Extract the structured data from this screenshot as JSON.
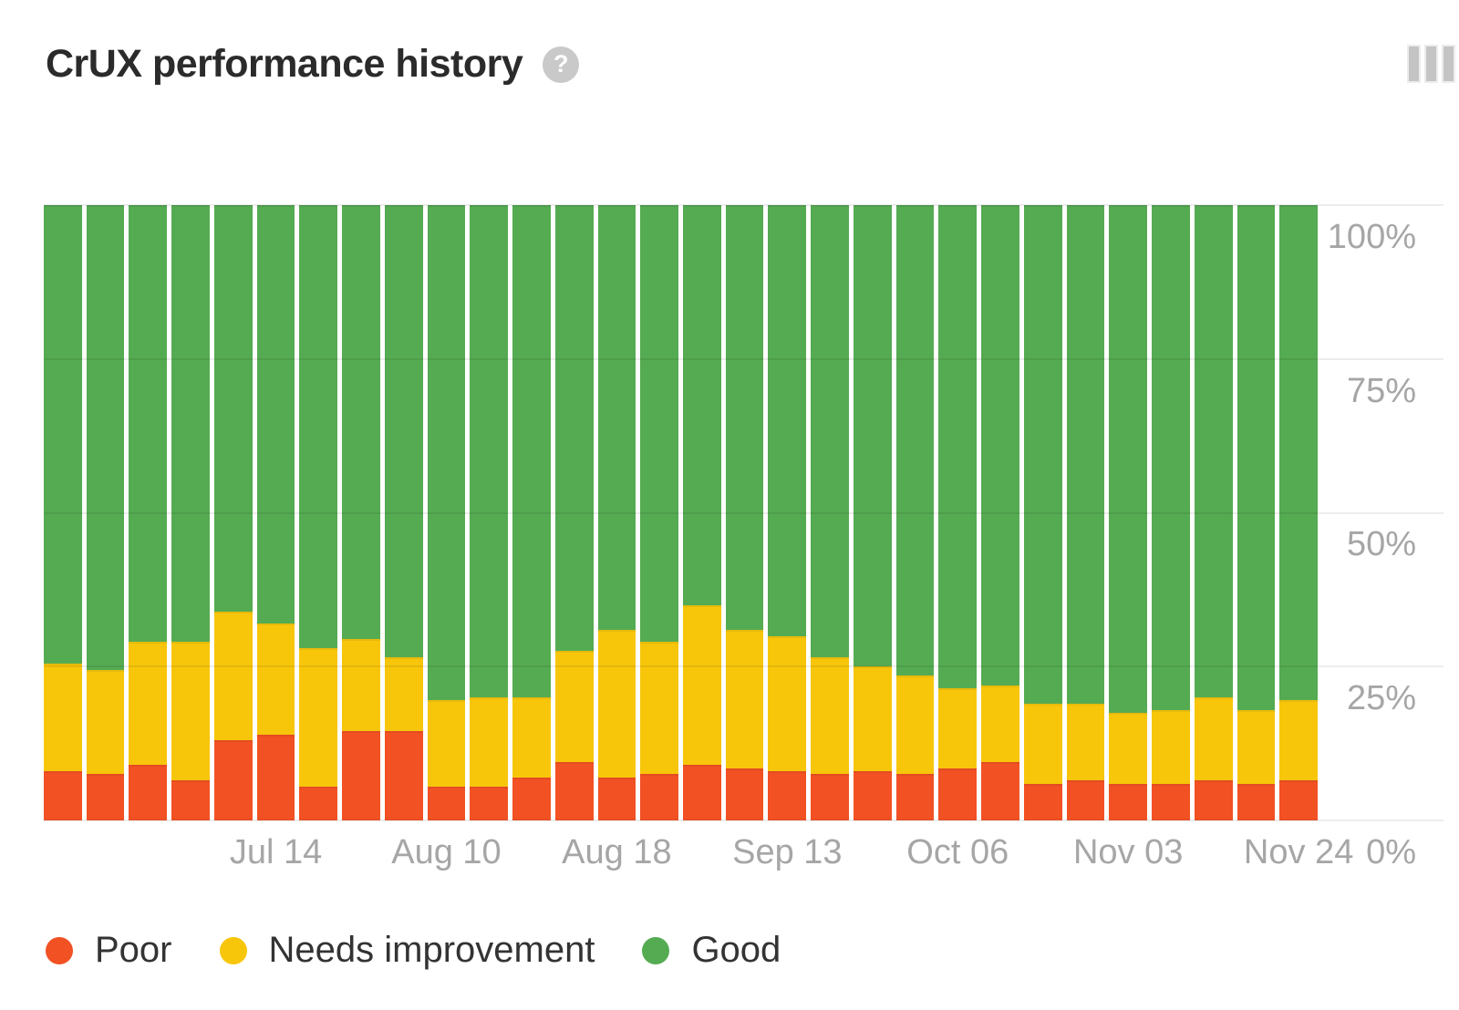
{
  "header": {
    "title": "CrUX performance history",
    "help_icon": "?",
    "icons": {
      "help": "question-mark-circle",
      "top_right": "column-chart-toggle"
    }
  },
  "axes": {
    "y_ticks": [
      "100%",
      "75%",
      "50%",
      "25%",
      "0%"
    ],
    "x_ticks": [
      {
        "label": "Jul 14",
        "bar_index": 5
      },
      {
        "label": "Aug 10",
        "bar_index": 9
      },
      {
        "label": "Aug 18",
        "bar_index": 13
      },
      {
        "label": "Sep 13",
        "bar_index": 17
      },
      {
        "label": "Oct 06",
        "bar_index": 21
      },
      {
        "label": "Nov 03",
        "bar_index": 25
      },
      {
        "label": "Nov 24",
        "bar_index": 29
      }
    ]
  },
  "legend": {
    "items": [
      {
        "label": "Poor",
        "color": "#f25124"
      },
      {
        "label": "Needs improvement",
        "color": "#f7c60b"
      },
      {
        "label": "Good",
        "color": "#55ab52"
      }
    ]
  },
  "chart_data": {
    "type": "bar",
    "stacked": true,
    "unit": "percent",
    "title": "CrUX performance history",
    "n_bars": 30,
    "x_tick_labels": [
      "Jul 14",
      "Aug 10",
      "Aug 18",
      "Sep 13",
      "Oct 06",
      "Nov 03",
      "Nov 24"
    ],
    "x_tick_bar_indices": [
      5,
      9,
      13,
      17,
      21,
      25,
      29
    ],
    "ylim": [
      0,
      100
    ],
    "y_tick_labels": [
      "0%",
      "25%",
      "50%",
      "75%",
      "100%"
    ],
    "grid": true,
    "legend_position": "bottom",
    "series": [
      {
        "name": "Poor",
        "color": "#f25124",
        "values": [
          8,
          7.5,
          9,
          6.5,
          13,
          14,
          5.5,
          14.5,
          14.5,
          5.5,
          5.5,
          7,
          9.5,
          7,
          7.5,
          9,
          8.5,
          8,
          7.5,
          8,
          7.5,
          8.5,
          9.5,
          6,
          6.5,
          6,
          6,
          6.5,
          6,
          6.5
        ]
      },
      {
        "name": "Needs improvement",
        "color": "#f7c60b",
        "values": [
          17.5,
          17,
          20,
          22.5,
          21,
          18,
          22.5,
          15,
          12,
          14,
          14.5,
          13,
          18,
          24,
          21.5,
          26,
          22.5,
          22,
          19,
          17,
          16,
          13,
          12.5,
          13,
          12.5,
          11.5,
          12,
          13.5,
          12,
          13
        ]
      },
      {
        "name": "Good",
        "color": "#55ab52",
        "values": [
          74.5,
          75.5,
          71,
          71,
          66,
          68,
          72,
          70.5,
          73.5,
          80.5,
          80,
          80,
          72.5,
          69,
          71,
          65,
          69,
          70,
          73.5,
          75,
          76.5,
          78.5,
          78,
          81,
          81,
          82.5,
          82,
          80,
          82,
          80.5
        ]
      }
    ],
    "colors": {
      "poor": "#f25124",
      "needs_improvement": "#f7c60b",
      "good": "#55ab52"
    }
  }
}
